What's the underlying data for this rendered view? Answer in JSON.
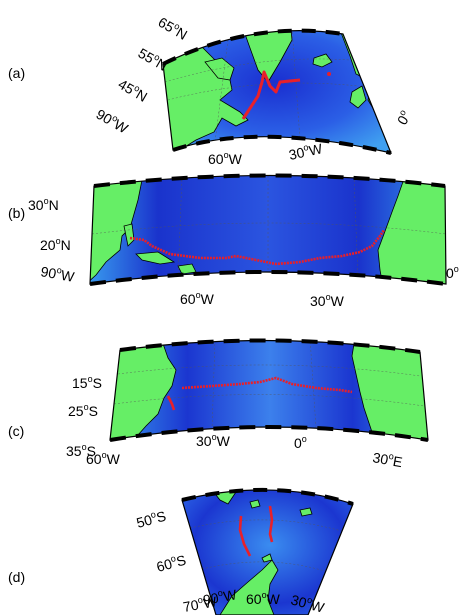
{
  "figure": {
    "panels": [
      {
        "label": "(a)",
        "lat_labels": [
          {
            "deg": "65",
            "hemi": "N"
          },
          {
            "deg": "55",
            "hemi": "N"
          },
          {
            "deg": "45",
            "hemi": "N"
          }
        ],
        "lon_labels": [
          {
            "deg": "90",
            "hemi": "W"
          },
          {
            "deg": "60",
            "hemi": "W"
          },
          {
            "deg": "30",
            "hemi": "W"
          },
          {
            "deg": "0",
            "hemi": ""
          }
        ]
      },
      {
        "label": "(b)",
        "lat_labels": [
          {
            "deg": "30",
            "hemi": "N"
          },
          {
            "deg": "20",
            "hemi": "N"
          }
        ],
        "lon_labels": [
          {
            "deg": "90",
            "hemi": "W"
          },
          {
            "deg": "60",
            "hemi": "W"
          },
          {
            "deg": "30",
            "hemi": "W"
          },
          {
            "deg": "0",
            "hemi": ""
          }
        ]
      },
      {
        "label": "(c)",
        "lat_labels": [
          {
            "deg": "15",
            "hemi": "S"
          },
          {
            "deg": "25",
            "hemi": "S"
          },
          {
            "deg": "35",
            "hemi": "S"
          }
        ],
        "lon_labels": [
          {
            "deg": "60",
            "hemi": "W"
          },
          {
            "deg": "30",
            "hemi": "W"
          },
          {
            "deg": "0",
            "hemi": ""
          },
          {
            "deg": "30",
            "hemi": "E"
          }
        ]
      },
      {
        "label": "(d)",
        "lat_labels": [
          {
            "deg": "50",
            "hemi": "S"
          },
          {
            "deg": "60",
            "hemi": "S"
          }
        ],
        "lon_labels": [
          {
            "deg": "70",
            "hemi": "W"
          },
          {
            "deg": "90",
            "hemi": "W"
          },
          {
            "deg": "60",
            "hemi": "W"
          },
          {
            "deg": "30",
            "hemi": "W"
          }
        ]
      }
    ],
    "colors": {
      "land": "#66ee66",
      "ocean_deep": "#1020c8",
      "ocean_mid": "#2f6cf0",
      "ocean_shallow": "#4ab2f4",
      "track": "#e8202a"
    }
  }
}
